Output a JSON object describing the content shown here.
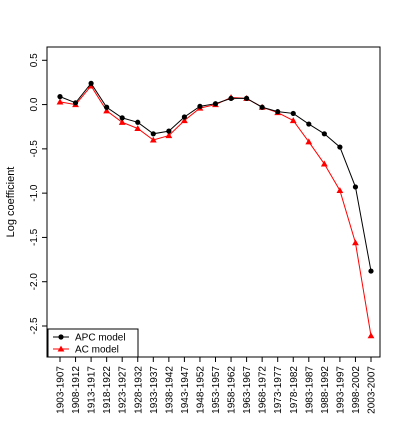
{
  "chart_data": {
    "type": "line",
    "title": "",
    "xlabel": "",
    "ylabel": "Log coefficient",
    "categories": [
      "1903-1907",
      "1908-1912",
      "1913-1917",
      "1918-1922",
      "1923-1927",
      "1928-1932",
      "1933-1937",
      "1938-1942",
      "1943-1947",
      "1948-1952",
      "1953-1957",
      "1958-1962",
      "1963-1967",
      "1968-1972",
      "1973-1977",
      "1978-1982",
      "1983-1987",
      "1988-1992",
      "1993-1997",
      "1998-2002",
      "2003-2007"
    ],
    "ylim": [
      -2.85,
      0.65
    ],
    "yticks": [
      "0.5",
      "0.0",
      "-0.5",
      "-1.0",
      "-1.5",
      "-2.0",
      "-2.5"
    ],
    "grid": false,
    "legend_position": "bottom-left",
    "series": [
      {
        "name": "APC model",
        "color": "#000000",
        "marker": "circle",
        "values": [
          0.09,
          0.02,
          0.24,
          -0.03,
          -0.15,
          -0.2,
          -0.33,
          -0.3,
          -0.14,
          -0.02,
          0.01,
          0.07,
          0.07,
          -0.03,
          -0.08,
          -0.1,
          -0.22,
          -0.33,
          -0.48,
          -0.93,
          -1.88
        ]
      },
      {
        "name": "AC model",
        "color": "#ff0000",
        "marker": "triangle",
        "values": [
          0.03,
          0.0,
          0.21,
          -0.07,
          -0.2,
          -0.27,
          -0.4,
          -0.35,
          -0.18,
          -0.04,
          0.0,
          0.08,
          0.07,
          -0.03,
          -0.09,
          -0.18,
          -0.42,
          -0.67,
          -0.97,
          -1.56,
          -2.61
        ]
      }
    ]
  }
}
